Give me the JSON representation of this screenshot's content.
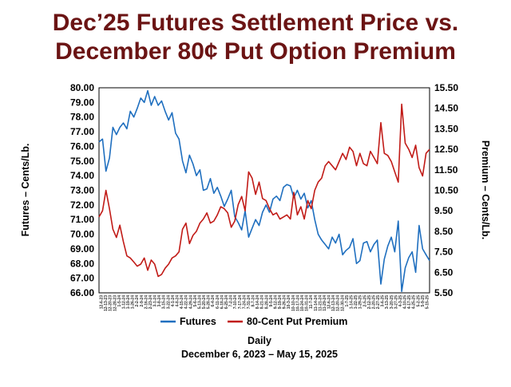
{
  "chart_data": {
    "type": "line",
    "title": "Dec’25 Futures Settlement Price vs.",
    "subtitle": "December 80¢ Put Option Premium",
    "title_color": "#6B1414",
    "ylabel": "Futures – Cents/Lb.",
    "y2label": "Premium – Cents/Lb.",
    "xlabel": "Daily",
    "xrange_label": "December 6, 2023 – May 15, 2025",
    "ylim": [
      66.0,
      80.0
    ],
    "y2lim": [
      5.5,
      15.5
    ],
    "yticks": [
      "80.00",
      "79.00",
      "78.00",
      "77.00",
      "76.00",
      "75.00",
      "74.00",
      "73.00",
      "72.00",
      "71.00",
      "70.00",
      "69.00",
      "68.00",
      "67.00",
      "66.00"
    ],
    "y2ticks": [
      "15.50",
      "14.50",
      "13.50",
      "12.50",
      "11.50",
      "10.50",
      "9.50",
      "8.50",
      "7.50",
      "6.50",
      "5.50"
    ],
    "grid": false,
    "legend_position": "bottom",
    "xtick_labels": [
      "12-6-23",
      "12-13-23",
      "12-20-23",
      "12-28-23",
      "1-5-24",
      "1-12-24",
      "1-19-24",
      "1-26-24",
      "2-2-24",
      "2-9-24",
      "2-16-24",
      "2-23-24",
      "3-1-24",
      "3-8-24",
      "3-15-24",
      "3-22-24",
      "4-1-24",
      "4-8-24",
      "4-15-24",
      "4-22-24",
      "4-29-24",
      "5-6-24",
      "5-13-24",
      "5-20-24",
      "5-28-24",
      "6-4-24",
      "6-11-24",
      "6-18-24",
      "6-25-24",
      "7-2-24",
      "7-10-24",
      "7-17-24",
      "7-24-24",
      "7-31-24",
      "8-7-24",
      "8-14-24",
      "8-21-24",
      "8-28-24",
      "9-5-24",
      "9-12-24",
      "9-19-24",
      "9-26-24",
      "10-3-24",
      "10-10-24",
      "10-17-24",
      "10-24-24",
      "10-31-24",
      "11-7-24",
      "11-14-24",
      "11-21-24",
      "11-29-24",
      "12-6-24",
      "12-13-24",
      "12-20-24",
      "12-30-24",
      "1-7-25",
      "1-14-25",
      "1-22-25",
      "1-29-25",
      "2-5-25",
      "2-12-25",
      "2-20-25",
      "2-27-25",
      "3-6-25",
      "3-13-25",
      "3-20-25",
      "3-27-25",
      "4-3-25",
      "4-10-25",
      "4-17-25",
      "4-25-25",
      "5-2-25",
      "5-9-25",
      "5-15-25"
    ],
    "series": [
      {
        "name": "Futures",
        "axis": "left",
        "color": "#1F6FBF",
        "values": [
          76.3,
          76.5,
          74.3,
          75.2,
          77.3,
          76.8,
          77.3,
          77.6,
          77.2,
          78.4,
          78.0,
          78.6,
          79.3,
          79.0,
          79.8,
          78.8,
          79.4,
          78.8,
          79.1,
          78.4,
          77.8,
          78.3,
          76.9,
          76.5,
          75.0,
          74.2,
          75.4,
          74.8,
          74.0,
          74.4,
          73.0,
          73.1,
          73.8,
          72.8,
          73.2,
          72.6,
          71.9,
          72.4,
          73.0,
          71.2,
          70.8,
          70.3,
          71.6,
          69.8,
          70.4,
          71.0,
          70.6,
          71.5,
          72.0,
          71.5,
          72.4,
          72.6,
          72.3,
          73.2,
          73.4,
          73.3,
          72.5,
          73.0,
          72.4,
          72.8,
          71.8,
          72.3,
          71.0,
          70.0,
          69.6,
          69.3,
          69.0,
          69.8,
          69.4,
          70.0,
          68.6,
          68.9,
          69.1,
          69.7,
          68.0,
          68.2,
          69.4,
          69.5,
          68.8,
          69.3,
          69.6,
          66.6,
          68.3,
          69.2,
          69.8,
          68.8,
          70.9,
          66.1,
          67.7,
          68.4,
          68.8,
          67.4,
          70.6,
          69.0,
          68.6,
          68.2
        ]
      },
      {
        "name": "80-Cent Put Premium",
        "axis": "right",
        "color": "#C11B17",
        "values": [
          9.2,
          9.5,
          10.5,
          9.6,
          8.6,
          8.2,
          8.8,
          8.0,
          7.3,
          7.2,
          7.0,
          6.8,
          6.9,
          7.2,
          6.6,
          7.1,
          6.9,
          6.3,
          6.4,
          6.7,
          6.9,
          7.2,
          7.3,
          7.5,
          8.6,
          8.9,
          7.9,
          8.3,
          8.5,
          8.9,
          9.1,
          9.4,
          8.9,
          9.0,
          9.3,
          9.7,
          9.6,
          9.4,
          8.7,
          9.0,
          9.8,
          10.2,
          9.5,
          11.4,
          11.1,
          10.3,
          10.9,
          10.1,
          10.0,
          9.6,
          9.3,
          9.4,
          9.1,
          9.2,
          9.3,
          9.1,
          10.4,
          9.3,
          9.7,
          9.1,
          10.0,
          9.6,
          10.5,
          10.9,
          11.1,
          11.7,
          11.9,
          11.7,
          11.5,
          11.9,
          12.3,
          12.0,
          12.6,
          12.4,
          11.7,
          12.3,
          11.8,
          11.7,
          12.4,
          12.1,
          11.8,
          13.8,
          12.3,
          12.2,
          11.9,
          11.4,
          10.9,
          14.7,
          12.8,
          12.5,
          12.1,
          12.7,
          11.6,
          11.2,
          12.3,
          12.5
        ]
      }
    ]
  }
}
